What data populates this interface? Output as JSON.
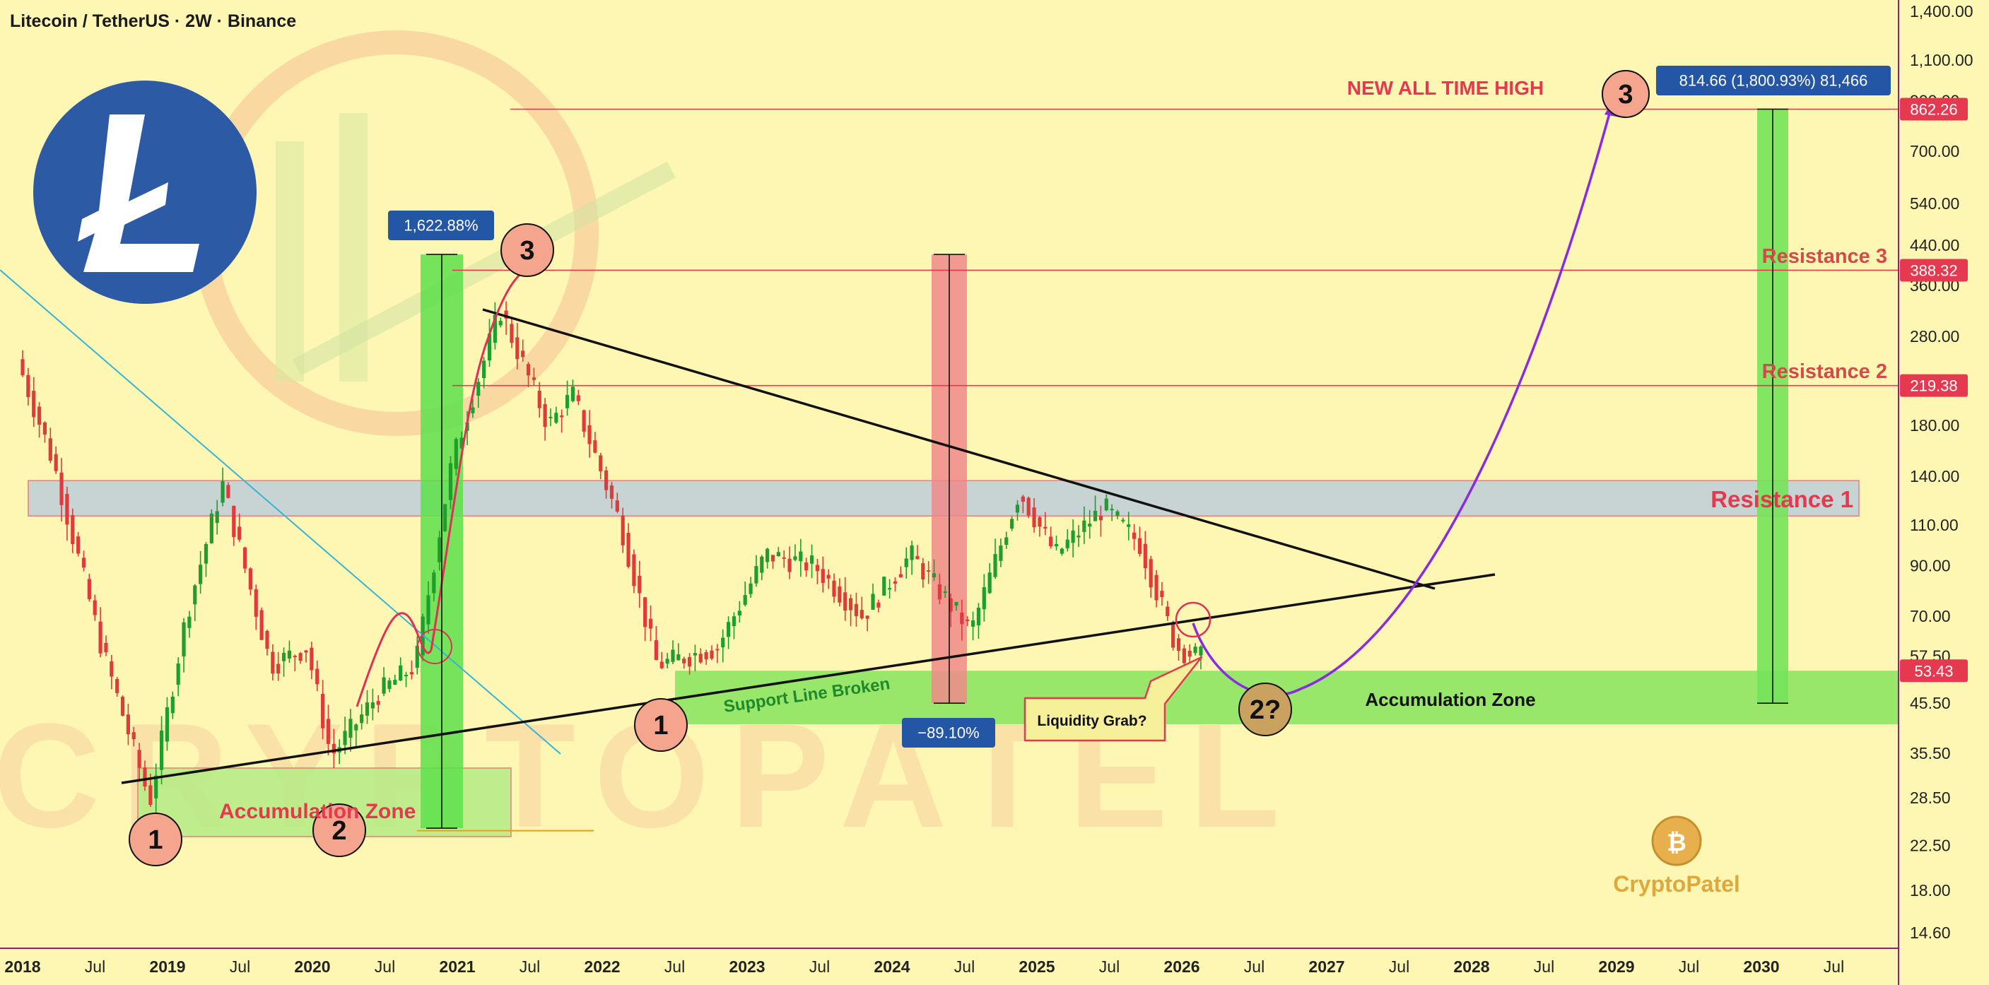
{
  "header": {
    "symbol_title": "Litecoin / TetherUS · 2W · Binance"
  },
  "branding": {
    "logo_text": "CryptoPatel",
    "watermark_text": "CRYPTOPATEL"
  },
  "chart_data": {
    "type": "line",
    "scale": "log",
    "ylim": [
      13.5,
      1500
    ],
    "x_tick_labels": [
      "2018",
      "Jul",
      "2019",
      "Jul",
      "2020",
      "Jul",
      "2021",
      "Jul",
      "2022",
      "Jul",
      "2023",
      "Jul",
      "2024",
      "Jul",
      "2025",
      "Jul",
      "2026",
      "Jul",
      "2027",
      "Jul",
      "2028",
      "Jul",
      "2029",
      "Jul",
      "2030",
      "Jul"
    ],
    "y_tick_labels": [
      "1,400.00",
      "1,100.00",
      "900.00",
      "700.00",
      "540.00",
      "440.00",
      "360.00",
      "280.00",
      "180.00",
      "140.00",
      "110.00",
      "90.00",
      "70.00",
      "57.50",
      "45.50",
      "35.50",
      "28.50",
      "22.50",
      "18.00",
      "14.60"
    ],
    "price_series": {
      "name": "Litecoin / TetherUS",
      "x": [
        "2018-01",
        "2018-04",
        "2018-08",
        "2018-12",
        "2019-03",
        "2019-06",
        "2019-10",
        "2020-01",
        "2020-03",
        "2020-07",
        "2020-10",
        "2021-01",
        "2021-05",
        "2021-09",
        "2021-11",
        "2022-03",
        "2022-06",
        "2022-11",
        "2023-03",
        "2023-07",
        "2023-11",
        "2024-03",
        "2024-08",
        "2024-12",
        "2025-03",
        "2025-07",
        "2025-10",
        "2026-01",
        "2026-03"
      ],
      "y": [
        250,
        150,
        60,
        28,
        70,
        135,
        55,
        60,
        35,
        48,
        55,
        150,
        320,
        180,
        210,
        110,
        55,
        60,
        95,
        90,
        70,
        95,
        65,
        130,
        95,
        120,
        100,
        60,
        57
      ]
    },
    "price_labels": [
      {
        "label": "862.26",
        "value": 862.26,
        "color": "#e53950"
      },
      {
        "label": "388.32",
        "value": 388.32,
        "color": "#e53950"
      },
      {
        "label": "219.38",
        "value": 219.38,
        "color": "#e53950"
      },
      {
        "label": "53.43",
        "value": 53.43,
        "color": "#e53950"
      }
    ],
    "annotations": {
      "new_ath": "NEW ALL TIME HIGH",
      "resistance_3": "Resistance 3",
      "resistance_2": "Resistance 2",
      "resistance_1": "Resistance 1",
      "accumulation_zone_left": "Accumulation Zone",
      "accumulation_zone_right": "Accumulation Zone",
      "support_broken": "Support Line Broken",
      "liquidity_grab": "Liquidity Grab?",
      "gain_2021": "1,622.88%",
      "drop_2024": "−89.10%",
      "target_measure": "814.66 (1,800.93%) 81,466"
    },
    "wave_markers": [
      "1",
      "2",
      "3",
      "1",
      "2?",
      "3"
    ],
    "levels": {
      "ath": 862.26,
      "res3": 388.32,
      "res2": 219.38,
      "res1_low": 115,
      "res1_high": 137,
      "acc_right_low": 41,
      "acc_right_high": 53.43,
      "acc_left_low": 23.5,
      "acc_left_high": 33
    },
    "colors": {
      "background": "#fef7b3",
      "up": "#1e9e2f",
      "down": "#e03a3a",
      "resistance": "#e53950",
      "marker_fill": "#f5a48e",
      "projection": "#8a2be2",
      "label_box": "#2456a6"
    }
  }
}
